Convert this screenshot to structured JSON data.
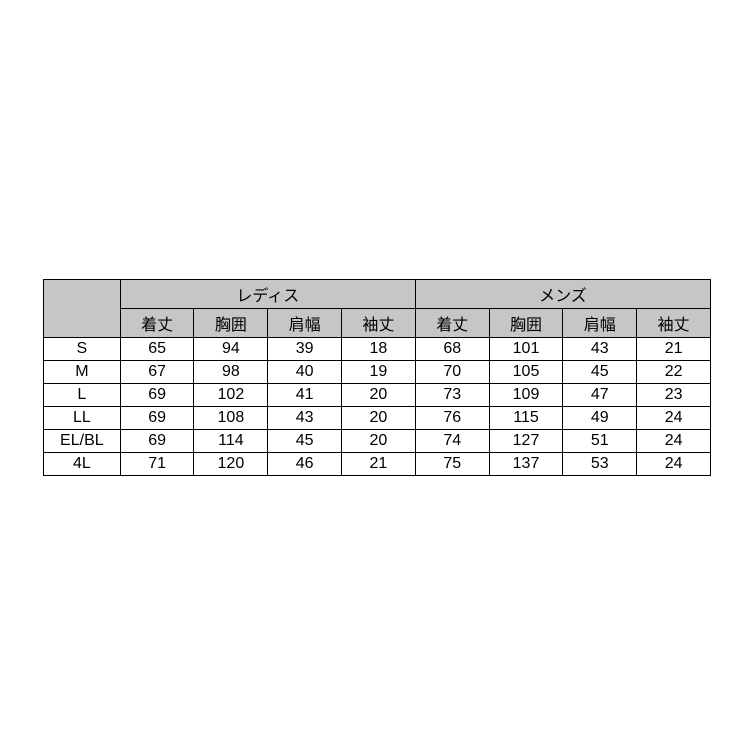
{
  "size_table": {
    "type": "table",
    "background_color": "#ffffff",
    "header_background_color": "#c6c6c6",
    "border_color": "#000000",
    "text_color": "#000000",
    "font_size": 16,
    "groups": [
      {
        "label": "レディス"
      },
      {
        "label": "メンズ"
      }
    ],
    "sub_columns": [
      "着丈",
      "胸囲",
      "肩幅",
      "袖丈"
    ],
    "size_labels": [
      "S",
      "M",
      "L",
      "LL",
      "EL/BL",
      "4L"
    ],
    "rows": [
      {
        "size": "S",
        "ladies": [
          65,
          94,
          39,
          18
        ],
        "mens": [
          68,
          101,
          43,
          21
        ]
      },
      {
        "size": "M",
        "ladies": [
          67,
          98,
          40,
          19
        ],
        "mens": [
          70,
          105,
          45,
          22
        ]
      },
      {
        "size": "L",
        "ladies": [
          69,
          102,
          41,
          20
        ],
        "mens": [
          73,
          109,
          47,
          23
        ]
      },
      {
        "size": "LL",
        "ladies": [
          69,
          108,
          43,
          20
        ],
        "mens": [
          76,
          115,
          49,
          24
        ]
      },
      {
        "size": "EL/BL",
        "ladies": [
          69,
          114,
          45,
          20
        ],
        "mens": [
          74,
          127,
          51,
          24
        ]
      },
      {
        "size": "4L",
        "ladies": [
          71,
          120,
          46,
          21
        ],
        "mens": [
          75,
          137,
          53,
          24
        ]
      }
    ]
  }
}
